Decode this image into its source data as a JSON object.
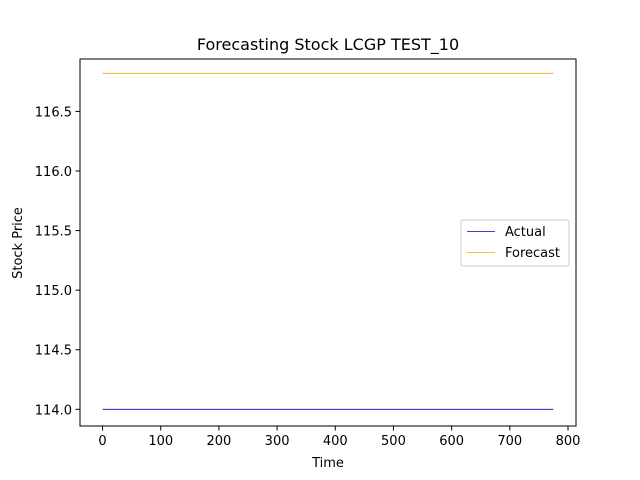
{
  "chart_data": {
    "type": "line",
    "title": "Forecasting Stock LCGP TEST_10",
    "xlabel": "Time",
    "ylabel": "Stock Price",
    "xlim": [
      -38.75,
      813.75
    ],
    "ylim": [
      113.86,
      116.94
    ],
    "xticks": [
      0,
      100,
      200,
      300,
      400,
      500,
      600,
      700,
      800
    ],
    "yticks": [
      114.0,
      114.5,
      115.0,
      115.5,
      116.0,
      116.5
    ],
    "xtick_labels": [
      "0",
      "100",
      "200",
      "300",
      "400",
      "500",
      "600",
      "700",
      "800"
    ],
    "ytick_labels": [
      "114.0",
      "114.5",
      "115.0",
      "115.5",
      "116.0",
      "116.5"
    ],
    "grid": false,
    "legend_position": "center-right",
    "series": [
      {
        "name": "Actual",
        "color": "#0000cc",
        "x": [
          0,
          775
        ],
        "y": [
          114.0,
          114.0
        ]
      },
      {
        "name": "Forecast",
        "color": "#ffa500",
        "x": [
          0,
          775
        ],
        "y": [
          116.82,
          116.82
        ]
      }
    ]
  }
}
